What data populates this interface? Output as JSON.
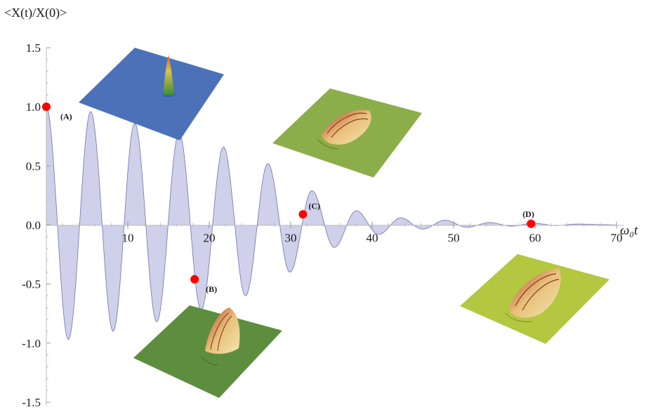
{
  "chart_data": {
    "type": "area",
    "ylabel": "<X(t)/X(0)>",
    "xlabel": "ω₀t",
    "xlim": [
      0,
      70
    ],
    "ylim": [
      -1.5,
      1.5
    ],
    "x_ticks": [
      10,
      20,
      30,
      40,
      50,
      60,
      70
    ],
    "x_tick_labels": [
      "10",
      "20",
      "30",
      "40",
      "50",
      "60",
      "70"
    ],
    "y_ticks": [
      1.5,
      1.0,
      0.5,
      0.0,
      -0.5,
      -1.0,
      -1.5
    ],
    "y_tick_labels": [
      "1.5",
      "1.0",
      "0.5",
      "0.0",
      "-0.5",
      "-1.0",
      "-1.5"
    ],
    "grid": false,
    "series": [
      {
        "x": [
          0,
          2.7,
          5.45,
          8.2,
          10.85,
          13.55,
          16.3,
          19.0,
          21.75,
          24.45,
          27.2,
          29.9,
          32.6,
          35.35,
          38.05,
          40.8,
          43.5,
          46.2,
          48.95,
          51.65,
          54.4,
          57.1,
          59.8,
          62.55,
          65.25,
          68.0,
          70.0
        ],
        "y": [
          1.0,
          -0.97,
          0.96,
          -0.9,
          0.86,
          -0.82,
          0.78,
          -0.72,
          0.66,
          -0.6,
          0.52,
          -0.4,
          0.29,
          -0.19,
          0.12,
          -0.08,
          0.06,
          -0.035,
          0.04,
          -0.02,
          0.02,
          -0.01,
          0.015,
          -0.005,
          0.008,
          0.003,
          0.0
        ],
        "fill_color": "#cfd0ea",
        "line_color": "#6f72b0"
      }
    ],
    "annotations": [
      {
        "label": "(A)",
        "x": 0.0,
        "y": 1.0
      },
      {
        "label": "(B)",
        "x": 18.2,
        "y": -0.46
      },
      {
        "label": "(C)",
        "x": 31.5,
        "y": 0.09
      },
      {
        "label": "(D)",
        "x": 59.5,
        "y": 0.01
      }
    ],
    "marker_color": "#ff0000",
    "insets": [
      {
        "for": "(A)",
        "plane_color": "#4b72b8"
      },
      {
        "for": "(B)",
        "plane_color": "#5d8e3e"
      },
      {
        "for": "(C)",
        "plane_color": "#8cae4a"
      },
      {
        "for": "(D)",
        "plane_color": "#b3c741"
      }
    ]
  }
}
